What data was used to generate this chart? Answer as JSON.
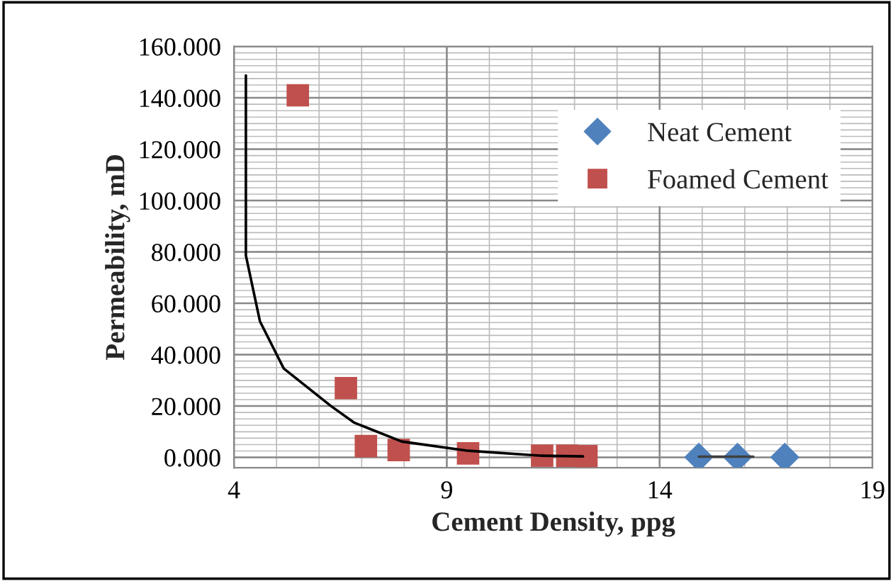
{
  "chart_data": {
    "type": "scatter",
    "xlabel": "Cement Density, ppg",
    "ylabel": "Permeability, mD",
    "xlim": [
      4,
      19
    ],
    "xticks": [
      4,
      9,
      14,
      19
    ],
    "ylim": [
      -4,
      160
    ],
    "yticks": [
      {
        "value": 0,
        "label": "0.000"
      },
      {
        "value": 20,
        "label": "20.000"
      },
      {
        "value": 40,
        "label": "40.000"
      },
      {
        "value": 60,
        "label": "60.000"
      },
      {
        "value": 80,
        "label": "80.000"
      },
      {
        "value": 100,
        "label": "100.000"
      },
      {
        "value": 120,
        "label": "120.000"
      },
      {
        "value": 140,
        "label": "140.000"
      },
      {
        "value": 160,
        "label": "160.000"
      }
    ],
    "grid": true,
    "legend": "top right",
    "series": [
      {
        "name": "Neat Cement",
        "color": "#4f81bd",
        "marker": "diamond",
        "x": [
          14.92,
          15.83,
          16.94
        ],
        "values": [
          0.1,
          0.1,
          0.1
        ]
      },
      {
        "name": "Foamed Cement",
        "color": "#c0504d",
        "marker": "square",
        "x": [
          5.5,
          6.63,
          7.1,
          7.87,
          9.5,
          11.24,
          11.83,
          12.28
        ],
        "values": [
          141,
          27,
          4.4,
          2.9,
          1.6,
          0.7,
          0.7,
          0.5
        ]
      },
      {
        "type": "line",
        "color": "#000000",
        "x": [
          4.28,
          4.28,
          4.61,
          5.17,
          6.28,
          6.83,
          7.94,
          9.5,
          11.17,
          12.2
        ],
        "values": [
          148.7,
          78.6,
          53,
          34.6,
          20,
          13.5,
          6.2,
          2.6,
          0.7,
          0.4
        ]
      },
      {
        "type": "line",
        "color": "#404040",
        "x": [
          14.92,
          16.2
        ],
        "values": [
          0.3,
          0.3
        ]
      }
    ]
  }
}
